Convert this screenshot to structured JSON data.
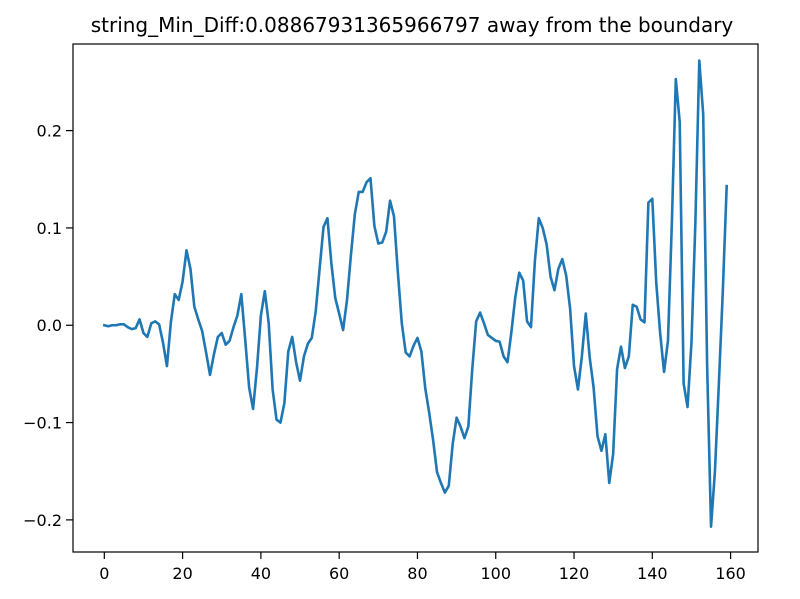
{
  "chart_data": {
    "type": "line",
    "title": "string_Min_Diff:0.08867931365966797 away from the boundary",
    "xlabel": "",
    "ylabel": "",
    "xlim": [
      -8,
      167
    ],
    "ylim": [
      -0.233,
      0.289
    ],
    "xticks": [
      0,
      20,
      40,
      60,
      80,
      100,
      120,
      140,
      160
    ],
    "yticks": [
      -0.2,
      -0.1,
      0.0,
      0.1,
      0.2
    ],
    "xtick_labels": [
      "0",
      "20",
      "40",
      "60",
      "80",
      "100",
      "120",
      "140",
      "160"
    ],
    "ytick_labels": [
      "−0.2",
      "−0.1",
      "0.0",
      "0.1",
      "0.2"
    ],
    "grid": false,
    "series": [
      {
        "color": "#1f77b4",
        "x": [
          0,
          1,
          2,
          3,
          4,
          5,
          6,
          7,
          8,
          9,
          10,
          11,
          12,
          13,
          14,
          15,
          16,
          17,
          18,
          19,
          20,
          21,
          22,
          23,
          24,
          25,
          26,
          27,
          28,
          29,
          30,
          31,
          32,
          33,
          34,
          35,
          36,
          37,
          38,
          39,
          40,
          41,
          42,
          43,
          44,
          45,
          46,
          47,
          48,
          49,
          50,
          51,
          52,
          53,
          54,
          55,
          56,
          57,
          58,
          59,
          60,
          61,
          62,
          63,
          64,
          65,
          66,
          67,
          68,
          69,
          70,
          71,
          72,
          73,
          74,
          75,
          76,
          77,
          78,
          79,
          80,
          81,
          82,
          83,
          84,
          85,
          86,
          87,
          88,
          89,
          90,
          91,
          92,
          93,
          94,
          95,
          96,
          97,
          98,
          99,
          100,
          101,
          102,
          103,
          104,
          105,
          106,
          107,
          108,
          109,
          110,
          111,
          112,
          113,
          114,
          115,
          116,
          117,
          118,
          119,
          120,
          121,
          122,
          123,
          124,
          125,
          126,
          127,
          128,
          129,
          130,
          131,
          132,
          133,
          134,
          135,
          136,
          137,
          138,
          139,
          140,
          141,
          142,
          143,
          144,
          145,
          146,
          147,
          148,
          149,
          150,
          151,
          152,
          153,
          154,
          155,
          156,
          157,
          158,
          159
        ],
        "values": [
          0.0,
          -0.001,
          0.0,
          0.0,
          0.001,
          0.001,
          -0.002,
          -0.004,
          -0.003,
          0.006,
          -0.008,
          -0.012,
          0.002,
          0.004,
          0.001,
          -0.018,
          -0.042,
          0.003,
          0.032,
          0.026,
          0.045,
          0.077,
          0.058,
          0.019,
          0.006,
          -0.006,
          -0.028,
          -0.051,
          -0.03,
          -0.012,
          -0.008,
          -0.02,
          -0.016,
          -0.002,
          0.01,
          0.032,
          -0.015,
          -0.064,
          -0.086,
          -0.044,
          0.01,
          0.035,
          0.002,
          -0.066,
          -0.097,
          -0.1,
          -0.08,
          -0.027,
          -0.012,
          -0.038,
          -0.057,
          -0.032,
          -0.019,
          -0.013,
          0.014,
          0.058,
          0.101,
          0.11,
          0.064,
          0.028,
          0.012,
          -0.005,
          0.026,
          0.072,
          0.114,
          0.137,
          0.137,
          0.147,
          0.151,
          0.102,
          0.084,
          0.085,
          0.096,
          0.128,
          0.112,
          0.054,
          0.002,
          -0.028,
          -0.032,
          -0.021,
          -0.013,
          -0.027,
          -0.065,
          -0.09,
          -0.118,
          -0.151,
          -0.162,
          -0.172,
          -0.165,
          -0.122,
          -0.095,
          -0.104,
          -0.116,
          -0.104,
          -0.045,
          0.004,
          0.013,
          0.002,
          -0.01,
          -0.013,
          -0.016,
          -0.017,
          -0.032,
          -0.038,
          -0.007,
          0.029,
          0.054,
          0.046,
          0.004,
          -0.002,
          0.066,
          0.11,
          0.1,
          0.083,
          0.05,
          0.036,
          0.058,
          0.068,
          0.051,
          0.017,
          -0.042,
          -0.066,
          -0.032,
          0.012,
          -0.033,
          -0.064,
          -0.114,
          -0.129,
          -0.112,
          -0.162,
          -0.132,
          -0.045,
          -0.022,
          -0.044,
          -0.032,
          0.021,
          0.019,
          0.006,
          0.003,
          0.126,
          0.13,
          0.044,
          -0.008,
          -0.048,
          -0.016,
          0.106,
          0.253,
          0.209,
          -0.06,
          -0.084,
          -0.018,
          0.105,
          0.272,
          0.217,
          -0.04,
          -0.207,
          -0.15,
          -0.06,
          0.034,
          0.143
        ]
      }
    ]
  }
}
